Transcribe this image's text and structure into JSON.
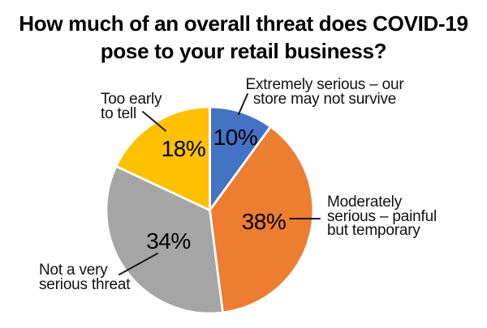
{
  "page": {
    "background_color": "#ffffff"
  },
  "chart_data": {
    "type": "pie",
    "title": "How much of an overall threat does COVID-19 pose to your retail business?",
    "title_lines": [
      "How much of an overall threat does COVID-19",
      "pose to your retail business?"
    ],
    "direction": "clockwise",
    "start_angle_deg": 0,
    "legend": "none (direct callout labels with leader lines)",
    "slices": [
      {
        "label": "Extremely serious – our store may not survive",
        "callout_lines": [
          "Extremely serious – our",
          "store may not survive"
        ],
        "value": 10,
        "pct_label": "10%",
        "color": "#4472C4"
      },
      {
        "label": "Moderately serious – painful but temporary",
        "callout_lines": [
          "Moderately",
          "serious – painful",
          "but temporary"
        ],
        "value": 38,
        "pct_label": "38%",
        "color": "#ED7D31"
      },
      {
        "label": "Not a very serious threat",
        "callout_lines": [
          "Not a very",
          "serious threat"
        ],
        "value": 34,
        "pct_label": "34%",
        "color": "#A5A5A5"
      },
      {
        "label": "Too early to tell",
        "callout_lines": [
          "Too early",
          "to tell"
        ],
        "value": 18,
        "pct_label": "18%",
        "color": "#FFC000"
      }
    ],
    "slice_border_color": "#ffffff",
    "text_color": "#000000",
    "leader_line_color": "#1a1a1a"
  }
}
